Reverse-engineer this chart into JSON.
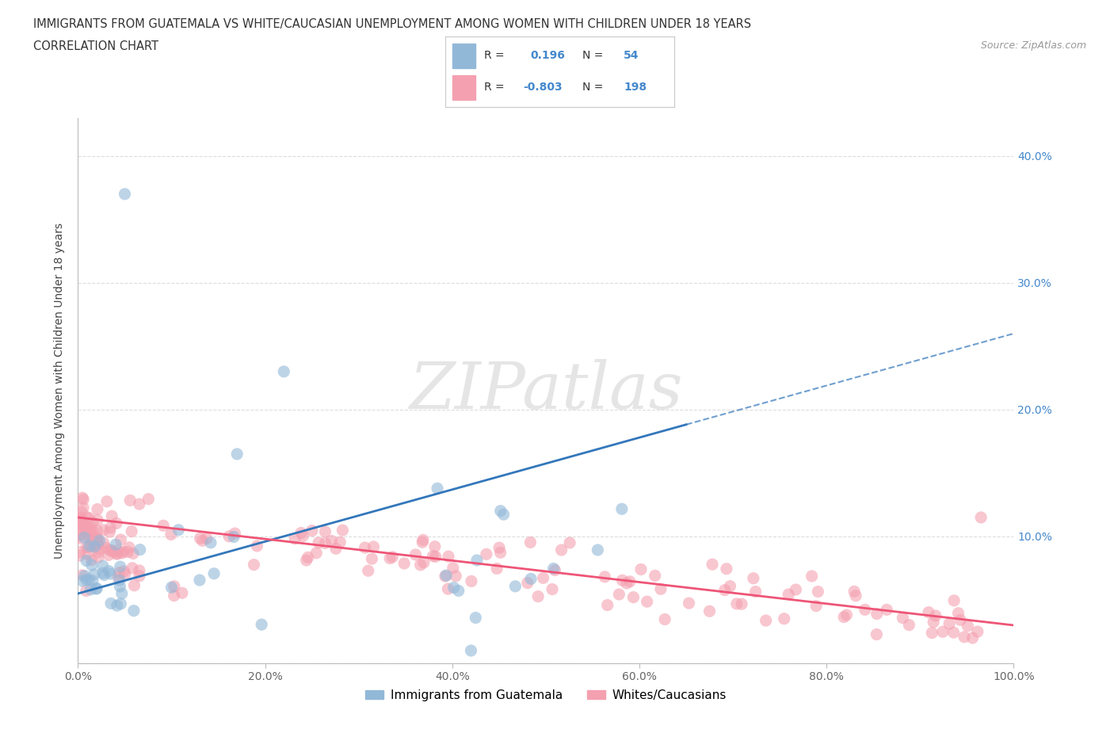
{
  "title_line1": "IMMIGRANTS FROM GUATEMALA VS WHITE/CAUCASIAN UNEMPLOYMENT AMONG WOMEN WITH CHILDREN UNDER 18 YEARS",
  "title_line2": "CORRELATION CHART",
  "source_text": "Source: ZipAtlas.com",
  "ylabel": "Unemployment Among Women with Children Under 18 years",
  "xlim": [
    0.0,
    1.0
  ],
  "ylim": [
    0.0,
    0.43
  ],
  "yticks": [
    0.0,
    0.1,
    0.2,
    0.3,
    0.4
  ],
  "ytick_labels_left": [
    "",
    "",
    "",
    "",
    ""
  ],
  "ytick_labels_right": [
    "",
    "10.0%",
    "20.0%",
    "30.0%",
    "40.0%"
  ],
  "xticks": [
    0.0,
    0.2,
    0.4,
    0.6,
    0.8,
    1.0
  ],
  "xtick_labels": [
    "0.0%",
    "20.0%",
    "40.0%",
    "60.0%",
    "80.0%",
    "100.0%"
  ],
  "watermark_text": "ZIPatlas",
  "blue_color": "#92B8D8",
  "pink_color": "#F4A0B0",
  "blue_line_color": "#3377BB",
  "pink_line_color": "#EE5577",
  "scatter_size": 120,
  "grid_color": "#DDDDDD",
  "background_color": "#FFFFFF",
  "title_color": "#333333",
  "right_ytick_color": "#4488CC",
  "legend_blue_r": "0.196",
  "legend_blue_n": "54",
  "legend_pink_r": "-0.803",
  "legend_pink_n": "198"
}
